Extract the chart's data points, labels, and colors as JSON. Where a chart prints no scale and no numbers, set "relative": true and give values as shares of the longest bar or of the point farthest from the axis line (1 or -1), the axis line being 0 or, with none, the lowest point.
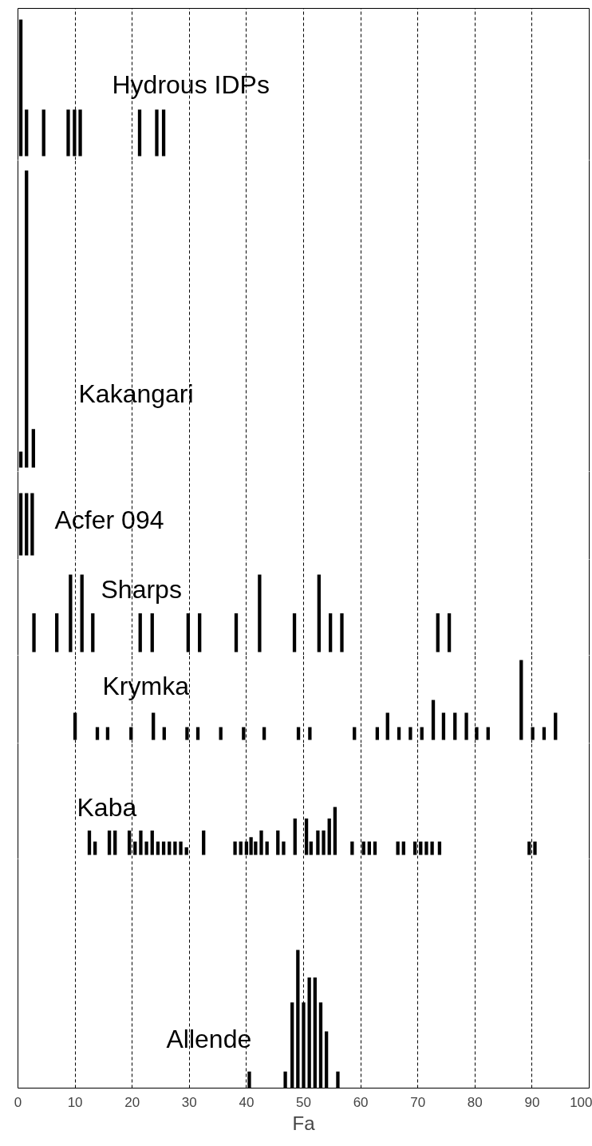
{
  "chart_data": [
    {
      "type": "bar",
      "title": "Hydrous IDPs",
      "x": [
        0.5,
        1.5,
        4.5,
        8.8,
        9.9,
        10.9,
        21.3,
        24.3,
        25.5
      ],
      "values": [
        1,
        0.34,
        0.34,
        0.34,
        0.34,
        0.34,
        0.34,
        0.34,
        0.34
      ],
      "color": "#000000",
      "relative": true,
      "xlim": [
        0,
        100
      ],
      "xticks": [
        0,
        10,
        20,
        30,
        40,
        50,
        60,
        70,
        80,
        90,
        100
      ],
      "grid": "x",
      "tick_labels": false
    },
    {
      "type": "bar",
      "title": "Kakangari",
      "x": [
        0.5,
        1.5,
        2.7
      ],
      "values": [
        0.054,
        1,
        0.13
      ],
      "color": "#000000",
      "relative": true,
      "xlim": [
        0,
        100
      ],
      "xticks": [
        0,
        10,
        20,
        30,
        40,
        50,
        60,
        70,
        80,
        90,
        100
      ],
      "grid": "x",
      "tick_labels": false
    },
    {
      "type": "bar",
      "title": "Acfer 094",
      "x": [
        0.5,
        1.5,
        2.5
      ],
      "values": [
        1,
        1,
        1
      ],
      "color": "#000000",
      "relative": true,
      "xlim": [
        0,
        100
      ],
      "xticks": [
        0,
        10,
        20,
        30,
        40,
        50,
        60,
        70,
        80,
        90,
        100
      ],
      "grid": "x",
      "tick_labels": false
    },
    {
      "type": "bar",
      "title": "Sharps",
      "x": [
        2.8,
        6.8,
        9.2,
        11.2,
        13.1,
        21.4,
        23.5,
        29.8,
        31.8,
        38.2,
        42.3,
        48.4,
        52.7,
        54.7,
        56.7,
        73.5,
        75.5
      ],
      "values": [
        0.5,
        0.5,
        1,
        1,
        0.5,
        0.5,
        0.5,
        0.5,
        0.5,
        0.5,
        1,
        0.5,
        1,
        0.5,
        0.5,
        0.5,
        0.5
      ],
      "color": "#000000",
      "relative": true,
      "xlim": [
        0,
        100
      ],
      "xticks": [
        0,
        10,
        20,
        30,
        40,
        50,
        60,
        70,
        80,
        90,
        100
      ],
      "grid": "x",
      "tick_labels": false
    },
    {
      "type": "bar",
      "title": "Krymka",
      "x": [
        10,
        13.9,
        15.7,
        19.8,
        23.7,
        25.6,
        29.6,
        31.5,
        35.5,
        39.5,
        43.1,
        49.1,
        51.1,
        58.9,
        62.9,
        64.7,
        66.7,
        68.7,
        70.7,
        72.7,
        74.5,
        76.5,
        78.5,
        80.3,
        82.3,
        88.1,
        90.1,
        92.1,
        94.1
      ],
      "values": [
        0.34,
        0.16,
        0.16,
        0.16,
        0.34,
        0.16,
        0.16,
        0.16,
        0.16,
        0.16,
        0.16,
        0.16,
        0.16,
        0.16,
        0.16,
        0.34,
        0.16,
        0.16,
        0.16,
        0.5,
        0.34,
        0.34,
        0.34,
        0.16,
        0.16,
        1,
        0.16,
        0.16,
        0.34
      ],
      "color": "#000000",
      "relative": true,
      "xlim": [
        0,
        100
      ],
      "xticks": [
        0,
        10,
        20,
        30,
        40,
        50,
        60,
        70,
        80,
        90,
        100
      ],
      "grid": "x",
      "tick_labels": false
    },
    {
      "type": "bar",
      "title": "Kaba",
      "x": [
        12.5,
        13.5,
        16,
        17,
        19.5,
        20.5,
        21.5,
        22.5,
        23.5,
        24.5,
        25.5,
        26.5,
        27.5,
        28.5,
        29.5,
        32.5,
        38,
        39,
        40,
        40.8,
        41.6,
        42.6,
        43.6,
        45.5,
        46.5,
        48.5,
        50.5,
        51.3,
        52.5,
        53.5,
        54.5,
        55.5,
        58.5,
        60.5,
        61.5,
        62.5,
        66.5,
        67.5,
        69.5,
        70.5,
        71.5,
        72.5,
        73.8,
        89.5,
        90.5
      ],
      "values": [
        0.51,
        0.28,
        0.51,
        0.51,
        0.51,
        0.28,
        0.51,
        0.28,
        0.51,
        0.28,
        0.28,
        0.28,
        0.28,
        0.28,
        0.16,
        0.51,
        0.28,
        0.28,
        0.28,
        0.37,
        0.28,
        0.51,
        0.28,
        0.51,
        0.28,
        0.76,
        0.76,
        0.28,
        0.51,
        0.51,
        0.76,
        1,
        0.28,
        0.28,
        0.28,
        0.28,
        0.28,
        0.28,
        0.28,
        0.28,
        0.28,
        0.28,
        0.28,
        0.28,
        0.28
      ],
      "color": "#000000",
      "relative": true,
      "xlim": [
        0,
        100
      ],
      "xticks": [
        0,
        10,
        20,
        30,
        40,
        50,
        60,
        70,
        80,
        90,
        100
      ],
      "grid": "x",
      "tick_labels": false
    },
    {
      "type": "bar",
      "title": "Allende",
      "x": [
        40.5,
        46.8,
        48,
        49,
        50,
        51,
        52,
        53,
        54,
        56
      ],
      "values": [
        0.12,
        0.12,
        0.62,
        1,
        0.62,
        0.8,
        0.8,
        0.62,
        0.41,
        0.12
      ],
      "color": "#000000",
      "relative": true,
      "xlim": [
        0,
        100
      ],
      "xticks": [
        0,
        10,
        20,
        30,
        40,
        50,
        60,
        70,
        80,
        90,
        100
      ],
      "grid": "x",
      "tick_labels": "x",
      "xlabel": "Fa"
    }
  ]
}
